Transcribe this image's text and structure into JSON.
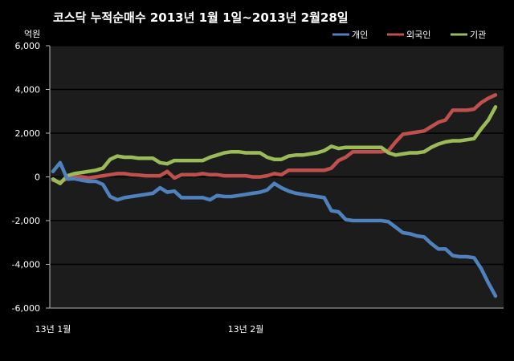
{
  "chart_data": {
    "type": "line",
    "title": "코스닥  누적순매수 2013년 1월 1일~2013년 2월28일",
    "ylabel": "억원",
    "xlabel": "",
    "ylim": [
      -6000,
      6000
    ],
    "yticks": [
      "6,000",
      "4,000",
      "2,000",
      "0",
      "-2,000",
      "-4,000",
      "-6,000"
    ],
    "ytick_values": [
      6000,
      4000,
      2000,
      0,
      -2000,
      -4000,
      -6000
    ],
    "xticks": [
      {
        "label": "13년 1월",
        "index": 0
      },
      {
        "label": "13년 2월",
        "index": 27
      }
    ],
    "grid": true,
    "legend": "top-right",
    "colors": {
      "개인": "#4f81bd",
      "외국인": "#c0504d",
      "기관": "#9bbb59"
    },
    "series": [
      {
        "name": "개인",
        "values": [
          250,
          650,
          -100,
          -80,
          -150,
          -200,
          -200,
          -350,
          -900,
          -1050,
          -950,
          -900,
          -850,
          -800,
          -750,
          -500,
          -700,
          -650,
          -950,
          -950,
          -950,
          -950,
          -1050,
          -850,
          -900,
          -900,
          -850,
          -800,
          -750,
          -700,
          -600,
          -300,
          -500,
          -650,
          -750,
          -800,
          -850,
          -900,
          -950,
          -1550,
          -1600,
          -1950,
          -2000,
          -2000,
          -2000,
          -2000,
          -2000,
          -2050,
          -2300,
          -2550,
          -2600,
          -2700,
          -2750,
          -3050,
          -3300,
          -3300,
          -3600,
          -3650,
          -3650,
          -3700,
          -4200,
          -4850,
          -5450
        ]
      },
      {
        "name": "외국인",
        "values": [
          -150,
          -250,
          -50,
          0,
          0,
          -50,
          0,
          50,
          100,
          150,
          150,
          100,
          80,
          50,
          50,
          50,
          250,
          -50,
          100,
          100,
          100,
          150,
          100,
          100,
          50,
          50,
          50,
          50,
          0,
          0,
          50,
          150,
          100,
          300,
          300,
          300,
          300,
          300,
          300,
          400,
          750,
          900,
          1150,
          1150,
          1150,
          1150,
          1150,
          1200,
          1600,
          1950,
          2000,
          2050,
          2100,
          2300,
          2500,
          2600,
          3050,
          3050,
          3050,
          3100,
          3400,
          3600,
          3750
        ]
      },
      {
        "name": "기관",
        "values": [
          -100,
          -300,
          50,
          150,
          200,
          250,
          300,
          400,
          800,
          950,
          900,
          900,
          850,
          850,
          850,
          650,
          600,
          750,
          750,
          750,
          750,
          750,
          900,
          1000,
          1100,
          1150,
          1150,
          1100,
          1100,
          1100,
          900,
          800,
          800,
          950,
          1000,
          1000,
          1050,
          1100,
          1200,
          1400,
          1300,
          1350,
          1350,
          1350,
          1350,
          1350,
          1350,
          1100,
          1000,
          1050,
          1100,
          1100,
          1150,
          1350,
          1500,
          1600,
          1650,
          1650,
          1700,
          1750,
          2200,
          2600,
          3200
        ]
      }
    ]
  }
}
